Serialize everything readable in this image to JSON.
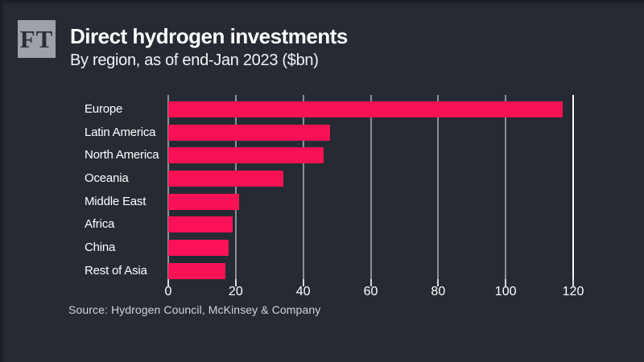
{
  "brand": {
    "logo_text": "FT"
  },
  "header": {
    "title": "Direct hydrogen investments",
    "subtitle": "By region, as of end-Jan 2023 ($bn)"
  },
  "source": "Source: Hydrogen Council, McKinsey & Company",
  "colors": {
    "background": "#262a33",
    "edge": "#1c1f26",
    "bar": "#fb1155",
    "gridline": "#8b8f97",
    "end_gridline": "#f8f9fa",
    "text": "#ffffff",
    "source_text": "#d2d4d8",
    "logo_background": "#9da2aa",
    "logo_text": "#2b2e36"
  },
  "chart_data": {
    "type": "bar",
    "orientation": "horizontal",
    "title": "Direct hydrogen investments",
    "subtitle": "By region, as of end-Jan 2023 ($bn)",
    "unit": "$bn",
    "categories": [
      "Europe",
      "Latin America",
      "North America",
      "Oceania",
      "Middle East",
      "Africa",
      "China",
      "Rest of Asia"
    ],
    "values": [
      117,
      48,
      46,
      34,
      21,
      19,
      18,
      17
    ],
    "xlim": [
      0,
      120
    ],
    "xticks": [
      0,
      20,
      40,
      60,
      80,
      100,
      120
    ],
    "grid": true,
    "legend": false,
    "bar_color": "#fb1155",
    "gridline_color": "#8b8f97",
    "end_gridline_color": "#f8f9fa"
  }
}
